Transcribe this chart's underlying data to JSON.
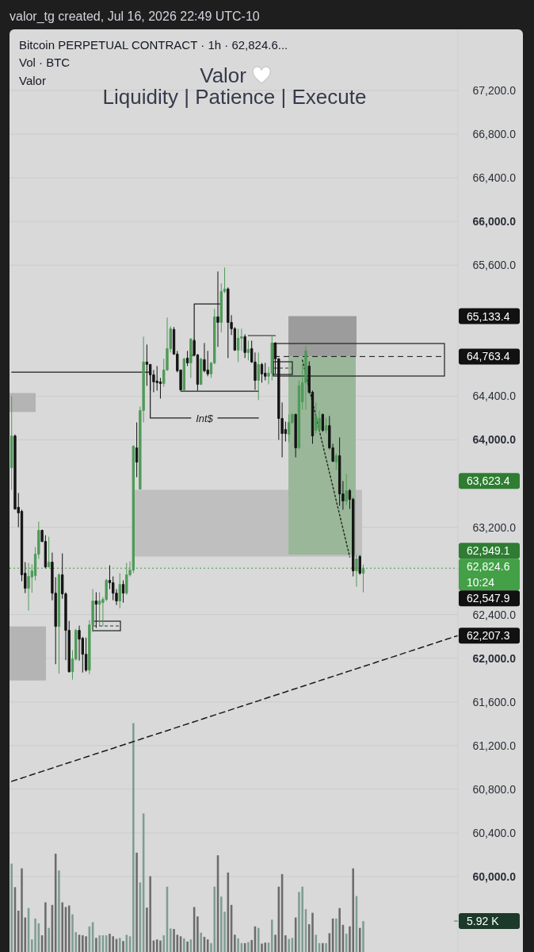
{
  "chart_data": {
    "type": "candlestick",
    "title": "Bitcoin PERPETUAL CONTRACT · 1h · 62,824.6...",
    "annotations": [
      "valor_tg created, Jul 16, 2026 22:49 UTC-10",
      "Vol · BTC",
      "Valor",
      "Valor",
      "Liquidity | Patience | Execute",
      "Int$",
      "10:24",
      "65,133.4",
      "62,949.1",
      "63,623.4",
      "62,547.9",
      "62,207.3"
    ],
    "categories": [
      null,
      null,
      null,
      null,
      null,
      null,
      null,
      null,
      null,
      null,
      null,
      null,
      null,
      null,
      null,
      null,
      null,
      null,
      null,
      null,
      null,
      null,
      null,
      null,
      null,
      null,
      null,
      null,
      null,
      null,
      null,
      null,
      null,
      null,
      null,
      null,
      null,
      null,
      null,
      null,
      null,
      null,
      null,
      null,
      null,
      null,
      null,
      null,
      null,
      null,
      null,
      null,
      null,
      null,
      null,
      null,
      null,
      null,
      null,
      null,
      null,
      null,
      null,
      null,
      null,
      null,
      null,
      null,
      null,
      null,
      null,
      null,
      null,
      null,
      null,
      null,
      null,
      null,
      null,
      null,
      null,
      null,
      null,
      null,
      null,
      null,
      null,
      null,
      null,
      null,
      null,
      null,
      null,
      null,
      null,
      null,
      null,
      null,
      null,
      null,
      null,
      null,
      null,
      null,
      null,
      null,
      null,
      null,
      null,
      null,
      null,
      null,
      null,
      null,
      null,
      null,
      null,
      null,
      null,
      null,
      null,
      null,
      null,
      null,
      null,
      null,
      null,
      null,
      null,
      null,
      null,
      null,
      null
    ],
    "ohlc": [
      [
        63745,
        64400,
        63542,
        64036
      ],
      [
        64036,
        64050,
        63360,
        63367
      ],
      [
        63382,
        63513,
        63200,
        63331
      ],
      [
        63345,
        63360,
        62705,
        62764
      ],
      [
        62778,
        62880,
        62596,
        62640
      ],
      [
        62640,
        62873,
        62436,
        62749
      ],
      [
        62745,
        62860,
        62600,
        62800
      ],
      [
        62756,
        63018,
        62713,
        62953
      ],
      [
        62953,
        63251,
        62909,
        63171
      ],
      [
        63171,
        63178,
        63062,
        63069
      ],
      [
        63069,
        63127,
        62822,
        62836
      ],
      [
        62836,
        63113,
        62836,
        62880
      ],
      [
        62880,
        62967,
        62531,
        62596
      ],
      [
        62596,
        62742,
        61945,
        62291
      ],
      [
        62291,
        62778,
        61858,
        62764
      ],
      [
        62764,
        62960,
        62545,
        62589
      ],
      [
        62589,
        62604,
        61982,
        62255
      ],
      [
        62255,
        62342,
        61869,
        61876
      ],
      [
        61876,
        62073,
        61804,
        61993
      ],
      [
        61993,
        62269,
        61978,
        62255
      ],
      [
        62255,
        62298,
        61978,
        62175
      ],
      [
        62182,
        62196,
        61869,
        62036
      ],
      [
        62036,
        62189,
        61876,
        61891
      ],
      [
        61891,
        62349,
        61855,
        62305
      ],
      [
        62305,
        62633,
        62240,
        62524
      ],
      [
        62524,
        62604,
        62276,
        62495
      ],
      [
        62495,
        62604,
        62291,
        62524
      ],
      [
        62510,
        62560,
        62291,
        62538
      ],
      [
        62538,
        62727,
        62524,
        62713
      ],
      [
        62713,
        62851,
        62633,
        62691
      ],
      [
        62691,
        62749,
        62531,
        62596
      ],
      [
        62596,
        62633,
        62487,
        62524
      ],
      [
        62524,
        62778,
        62458,
        62676
      ],
      [
        62676,
        62713,
        62509,
        62596
      ],
      [
        62596,
        62873,
        62582,
        62764
      ],
      [
        62764,
        62887,
        62749,
        62807
      ],
      [
        62807,
        63950,
        62780,
        63942
      ],
      [
        63927,
        64160,
        63658,
        63796
      ],
      [
        63549,
        64305,
        63549,
        64269
      ],
      [
        64269,
        64945,
        64160,
        64713
      ],
      [
        64713,
        64873,
        64495,
        64691
      ],
      [
        64691,
        64691,
        64451,
        64596
      ],
      [
        64596,
        64640,
        64436,
        64531
      ],
      [
        64538,
        64676,
        64451,
        64524
      ],
      [
        64531,
        64567,
        64378,
        64516
      ],
      [
        64516,
        64742,
        64487,
        64640
      ],
      [
        64640,
        65120,
        64633,
        64836
      ],
      [
        64836,
        65040,
        64800,
        65018
      ],
      [
        65011,
        65033,
        64778,
        64786
      ],
      [
        64786,
        64815,
        64618,
        64633
      ],
      [
        64640,
        64640,
        64451,
        64458
      ],
      [
        64458,
        64749,
        64451,
        64742
      ],
      [
        64749,
        64815,
        64676,
        64705
      ],
      [
        64705,
        64931,
        64567,
        64924
      ],
      [
        64909,
        64924,
        64764,
        64778
      ],
      [
        64778,
        64786,
        64451,
        64509
      ],
      [
        64509,
        64749,
        64502,
        64742
      ],
      [
        64735,
        64887,
        64618,
        64633
      ],
      [
        64640,
        64815,
        64582,
        64604
      ],
      [
        64604,
        64713,
        64567,
        64705
      ],
      [
        64705,
        65200,
        64691,
        65127
      ],
      [
        65127,
        65542,
        64851,
        65076
      ],
      [
        65076,
        65433,
        64985,
        65360
      ],
      [
        65360,
        65578,
        65345,
        65382
      ],
      [
        65382,
        65396,
        64749,
        65076
      ],
      [
        65076,
        65142,
        64960,
        65018
      ],
      [
        65018,
        65033,
        64815,
        64822
      ],
      [
        64822,
        65018,
        64713,
        64931
      ],
      [
        64931,
        65018,
        64815,
        64945
      ],
      [
        64945,
        64967,
        64749,
        64800
      ],
      [
        64800,
        64909,
        64727,
        64829
      ],
      [
        64836,
        64909,
        64705,
        64713
      ],
      [
        64713,
        64800,
        64458,
        64545
      ],
      [
        64545,
        64800,
        64364,
        64691
      ],
      [
        64691,
        64705,
        64524,
        64604
      ],
      [
        64611,
        64705,
        64545,
        64582
      ],
      [
        64582,
        64669,
        64509,
        64611
      ],
      [
        64611,
        64960,
        64545,
        64887
      ],
      [
        64887,
        64895,
        64604,
        64742
      ],
      [
        64742,
        64749,
        64000,
        64196
      ],
      [
        64196,
        64342,
        63840,
        64058
      ],
      [
        64095,
        64167,
        63985,
        64058
      ],
      [
        64051,
        64233,
        63978,
        64160
      ],
      [
        64160,
        64240,
        64145,
        64233
      ],
      [
        64233,
        64240,
        63840,
        63927
      ],
      [
        63927,
        64545,
        63913,
        64495
      ],
      [
        64349,
        64691,
        64276,
        64524
      ],
      [
        64524,
        64858,
        64276,
        64815
      ],
      [
        64676,
        64720,
        64422,
        64436
      ],
      [
        64436,
        64451,
        63964,
        64036
      ],
      [
        64087,
        64342,
        64058,
        64218
      ],
      [
        64095,
        64269,
        64073,
        64196
      ],
      [
        64233,
        64240,
        64073,
        64087
      ],
      [
        64087,
        64204,
        64058,
        64131
      ],
      [
        64131,
        64218,
        63913,
        63927
      ],
      [
        63927,
        63964,
        63796,
        63804
      ],
      [
        63796,
        63876,
        63724,
        63855
      ],
      [
        63855,
        64022,
        63396,
        63505
      ],
      [
        63505,
        63622,
        63360,
        63440
      ],
      [
        63440,
        63687,
        63404,
        63535
      ],
      [
        63535,
        63549,
        63367,
        63455
      ],
      [
        63455,
        63469,
        62749,
        62800
      ],
      [
        62800,
        62945,
        62655,
        62909
      ],
      [
        62931,
        62945,
        62764,
        62778
      ],
      [
        62778,
        62858,
        62604,
        62824.6
      ],
      null,
      null,
      null,
      null,
      null,
      null,
      null,
      null,
      null,
      null,
      null,
      null,
      null,
      null,
      null,
      null,
      null,
      null,
      null,
      null,
      null,
      null,
      null,
      null,
      null,
      null,
      null,
      null
    ],
    "colors": [
      "#4f9a58",
      "#141414",
      "#141414",
      "#141414",
      "#141414",
      "#4f9a58",
      "#4f9a58",
      "#4f9a58",
      "#4f9a58",
      "#141414",
      "#141414",
      "#4f9a58",
      "#141414",
      "#141414",
      "#4f9a58",
      "#141414",
      "#141414",
      "#141414",
      "#4f9a58",
      "#4f9a58",
      "#141414",
      "#141414",
      "#141414",
      "#4f9a58",
      "#4f9a58",
      "#141414",
      "#4f9a58",
      "#4f9a58",
      "#4f9a58",
      "#141414",
      "#141414",
      "#141414",
      "#4f9a58",
      "#141414",
      "#4f9a58",
      "#4f9a58",
      "#4f9a58",
      "#141414",
      "#4f9a58",
      "#4f9a58",
      "#141414",
      "#141414",
      "#141414",
      "#141414",
      "#141414",
      "#4f9a58",
      "#4f9a58",
      "#4f9a58",
      "#141414",
      "#141414",
      "#141414",
      "#4f9a58",
      "#141414",
      "#4f9a58",
      "#141414",
      "#141414",
      "#4f9a58",
      "#141414",
      "#141414",
      "#4f9a58",
      "#4f9a58",
      "#141414",
      "#4f9a58",
      "#4f9a58",
      "#141414",
      "#141414",
      "#141414",
      "#4f9a58",
      "#4f9a58",
      "#141414",
      "#4f9a58",
      "#141414",
      "#141414",
      "#4f9a58",
      "#141414",
      "#141414",
      "#4f9a58",
      "#4f9a58",
      "#141414",
      "#141414",
      "#141414",
      "#141414",
      "#4f9a58",
      "#4f9a58",
      "#141414",
      "#4f9a58",
      "#4f9a58",
      "#4f9a58",
      "#141414",
      "#141414",
      "#4f9a58",
      "#4f9a58",
      "#141414",
      "#4f9a58",
      "#141414",
      "#141414",
      "#4f9a58",
      "#141414",
      "#141414",
      "#4f9a58",
      "#141414",
      "#141414",
      "#4f9a58",
      "#141414",
      "#4f9a58",
      null,
      null,
      null,
      null,
      null,
      null,
      null,
      null,
      null,
      null,
      null,
      null,
      null,
      null,
      null,
      null,
      null,
      null,
      null,
      null,
      null,
      null,
      null,
      null,
      null,
      null,
      null,
      null
    ],
    "series": [
      {
        "type": "bar",
        "axis": "y2",
        "values": [
          16.9,
          12.4,
          7.9,
          16.0,
          6.6,
          8.4,
          2.4,
          6.4,
          5.5,
          3.2,
          9.5,
          4.6,
          9.0,
          18.8,
          15.6,
          9.5,
          8.6,
          8.9,
          7.2,
          3.8,
          3.3,
          3.2,
          3.0,
          4.9,
          5.7,
          2.7,
          3.2,
          3.2,
          3.2,
          3.5,
          3.0,
          2.5,
          2.7,
          2.1,
          3.3,
          3.0,
          43.8,
          19.0,
          13.3,
          26.5,
          8.5,
          14.5,
          2.2,
          2.4,
          2.2,
          3.2,
          12.5,
          4.5,
          4.4,
          3.3,
          3.0,
          2.6,
          2.0,
          2.4,
          8.6,
          6.8,
          3.7,
          2.9,
          2.4,
          1.7,
          12.5,
          18.5,
          10.6,
          7.7,
          15.2,
          9.0,
          3.3,
          2.6,
          1.7,
          1.7,
          1.9,
          2.3,
          4.9,
          4.6,
          1.6,
          1.8,
          1.8,
          6.2,
          3.3,
          12.5,
          14.9,
          3.2,
          2.5,
          2.7,
          6.6,
          11.5,
          12.5,
          8.2,
          5.3,
          7.5,
          3.3,
          1.7,
          1.7,
          1.7,
          3.6,
          6.4,
          6.4,
          8.4,
          5.2,
          3.5,
          4.9,
          16.0,
          10.7,
          4.6,
          5.9,
          null,
          null,
          null,
          null,
          null,
          null,
          null,
          null,
          null,
          null,
          null,
          null,
          null,
          null,
          null,
          null,
          null,
          null,
          null,
          null,
          null,
          null,
          null,
          null,
          null,
          null,
          null,
          null
        ],
        "colors": [
          "#7f9d92",
          "#6c6c6c",
          "#6c6c6c",
          "#6c6c6c",
          "#6c6c6c",
          "#7f9d92",
          "#7f9d92",
          "#7f9d92",
          "#7f9d92",
          "#6c6c6c",
          "#6c6c6c",
          "#7f9d92",
          "#6c6c6c",
          "#6c6c6c",
          "#7f9d92",
          "#6c6c6c",
          "#6c6c6c",
          "#6c6c6c",
          "#7f9d92",
          "#7f9d92",
          "#6c6c6c",
          "#6c6c6c",
          "#6c6c6c",
          "#7f9d92",
          "#7f9d92",
          "#6c6c6c",
          "#7f9d92",
          "#7f9d92",
          "#7f9d92",
          "#6c6c6c",
          "#6c6c6c",
          "#6c6c6c",
          "#7f9d92",
          "#6c6c6c",
          "#7f9d92",
          "#7f9d92",
          "#7f9d92",
          "#6c6c6c",
          "#7f9d92",
          "#7f9d92",
          "#6c6c6c",
          "#6c6c6c",
          "#6c6c6c",
          "#6c6c6c",
          "#6c6c6c",
          "#7f9d92",
          "#7f9d92",
          "#7f9d92",
          "#6c6c6c",
          "#6c6c6c",
          "#6c6c6c",
          "#7f9d92",
          "#6c6c6c",
          "#7f9d92",
          "#6c6c6c",
          "#6c6c6c",
          "#7f9d92",
          "#6c6c6c",
          "#6c6c6c",
          "#7f9d92",
          "#7f9d92",
          "#6c6c6c",
          "#7f9d92",
          "#7f9d92",
          "#6c6c6c",
          "#6c6c6c",
          "#6c6c6c",
          "#7f9d92",
          "#7f9d92",
          "#6c6c6c",
          "#7f9d92",
          "#6c6c6c",
          "#6c6c6c",
          "#7f9d92",
          "#6c6c6c",
          "#6c6c6c",
          "#7f9d92",
          "#7f9d92",
          "#6c6c6c",
          "#6c6c6c",
          "#6c6c6c",
          "#6c6c6c",
          "#7f9d92",
          "#7f9d92",
          "#6c6c6c",
          "#7f9d92",
          "#7f9d92",
          "#7f9d92",
          "#6c6c6c",
          "#6c6c6c",
          "#7f9d92",
          "#7f9d92",
          "#6c6c6c",
          "#7f9d92",
          "#6c6c6c",
          "#6c6c6c",
          "#7f9d92",
          "#6c6c6c",
          "#6c6c6c",
          "#7f9d92",
          "#6c6c6c",
          "#6c6c6c",
          "#7f9d92",
          "#6c6c6c",
          "#7f9d92",
          null,
          null,
          null,
          null,
          null,
          null,
          null,
          null,
          null,
          null,
          null,
          null,
          null,
          null,
          null,
          null,
          null,
          null,
          null,
          null,
          null,
          null,
          null,
          null,
          null,
          null,
          null,
          null
        ]
      },
      {
        "type": "line",
        "color": "#1a1a1a",
        "line_style": "dashed",
        "values": [
          60872,
          60882,
          60892,
          60902,
          60912,
          60923,
          60933,
          60943,
          60953,
          60963,
          60973,
          60983,
          60993,
          61004,
          61014,
          61024,
          61034,
          61044,
          61054,
          61064,
          61074,
          61084,
          61095,
          61105,
          61115,
          61125,
          61135,
          61145,
          61155,
          61165,
          61175,
          61186,
          61196,
          61206,
          61216,
          61226,
          61236,
          61246,
          61256,
          61267,
          61277,
          61287,
          61297,
          61307,
          61317,
          61327,
          61337,
          61347,
          61358,
          61368,
          61378,
          61388,
          61398,
          61408,
          61418,
          61428,
          61438,
          61449,
          61459,
          61469,
          61479,
          61489,
          61499,
          61509,
          61519,
          61530,
          61540,
          61550,
          61560,
          61570,
          61580,
          61590,
          61600,
          61610,
          61621,
          61631,
          61641,
          61651,
          61661,
          61671,
          61681,
          61691,
          61702,
          61712,
          61722,
          61732,
          61742,
          61752,
          61762,
          61772,
          61782,
          61793,
          61803,
          61813,
          61823,
          61833,
          61843,
          61853,
          61863,
          61874,
          61884,
          61894,
          61904,
          61914,
          61924,
          61934,
          61944,
          61954,
          61965,
          61975,
          61985,
          61995,
          62005,
          62015,
          62025,
          62035,
          62046,
          62056,
          62066,
          62076,
          62086,
          62096,
          62106,
          62116,
          62126,
          62137,
          62147,
          62157,
          62167,
          62177,
          62187,
          62197,
          62207
        ]
      },
      {
        "type": "line",
        "color": "#2b2b2b",
        "line_style": "dotted",
        "values": [
          null,
          null,
          null,
          null,
          null,
          null,
          null,
          null,
          null,
          null,
          null,
          null,
          null,
          null,
          null,
          null,
          null,
          null,
          null,
          null,
          null,
          null,
          null,
          null,
          null,
          null,
          null,
          null,
          null,
          null,
          null,
          null,
          null,
          null,
          null,
          null,
          null,
          null,
          null,
          null,
          null,
          null,
          null,
          null,
          null,
          null,
          null,
          null,
          null,
          null,
          null,
          null,
          null,
          null,
          null,
          null,
          null,
          null,
          null,
          null,
          null,
          null,
          null,
          null,
          null,
          null,
          null,
          null,
          null,
          null,
          null,
          null,
          null,
          null,
          null,
          null,
          null,
          null,
          null,
          null,
          null,
          null,
          null,
          null,
          null,
          null,
          64730,
          64601,
          64472,
          64344,
          64215,
          64087,
          63958,
          63829,
          63700,
          63572,
          63443,
          63314,
          63185,
          63057,
          62928,
          null,
          null,
          null,
          null,
          null,
          null,
          null,
          null,
          null,
          null,
          null,
          null,
          null,
          null,
          null,
          null,
          null,
          null,
          null,
          null,
          null,
          null,
          null,
          null,
          null,
          null,
          null,
          null,
          null,
          null,
          null,
          null
        ]
      },
      {
        "type": "step",
        "color": "#1e1e1e",
        "line_style": "solid",
        "values": [
          64620,
          64620,
          64620,
          64620,
          64620,
          64620,
          64620,
          64620,
          64620,
          64620,
          64620,
          64620,
          64620,
          64620,
          64620,
          64620,
          64620,
          64620,
          64620,
          64620,
          64620,
          64620,
          64620,
          64620,
          64620,
          64620,
          64620,
          64620,
          64620,
          64620,
          64620,
          64620,
          64620,
          64620,
          64620,
          64620,
          64620,
          64620,
          64620,
          64620,
          64620,
          64200,
          64200,
          64200,
          64200,
          64200,
          64200,
          64200,
          64200,
          64200,
          64200,
          64200,
          64200,
          64200,
          null,
          null,
          null,
          null,
          null,
          null,
          null,
          64200,
          64200,
          64200,
          64200,
          64200,
          64200,
          64200,
          64200,
          64200,
          64200,
          64200,
          64200,
          64200,
          null,
          null,
          null,
          null,
          null,
          null,
          null,
          null,
          null,
          null,
          null,
          null,
          null,
          null,
          null,
          null,
          null,
          null,
          null,
          null,
          null,
          null,
          null,
          null,
          null,
          null,
          null,
          null,
          null,
          null,
          null,
          null,
          null,
          null,
          null,
          null,
          null,
          null,
          null,
          null,
          null,
          null,
          null,
          null,
          null,
          null,
          null,
          null,
          null,
          null,
          null,
          null,
          null,
          null,
          null,
          null,
          null,
          null,
          null
        ]
      },
      {
        "type": "line",
        "color": "#1e1e1e",
        "line_style": "solid",
        "values": [
          null,
          null,
          null,
          null,
          null,
          null,
          null,
          null,
          null,
          null,
          null,
          null,
          null,
          null,
          null,
          null,
          null,
          null,
          null,
          null,
          null,
          null,
          null,
          null,
          null,
          null,
          null,
          null,
          null,
          null,
          null,
          null,
          null,
          null,
          null,
          null,
          null,
          null,
          null,
          null,
          null,
          null,
          null,
          null,
          null,
          null,
          null,
          null,
          null,
          null,
          64445,
          64445,
          64445,
          64445,
          64445,
          64445,
          64445,
          64445,
          64445,
          64445,
          64445,
          64445,
          64445,
          64445,
          64445,
          64445,
          64445,
          64445,
          64445,
          64445,
          64445,
          64445,
          64445,
          64445,
          null,
          null,
          null,
          null,
          null,
          null,
          null,
          null,
          null,
          null,
          null,
          null,
          null,
          null,
          null,
          null,
          null,
          null,
          null,
          null,
          null,
          null,
          null,
          null,
          null,
          null,
          null,
          null,
          null,
          null,
          null,
          null,
          null,
          null,
          null,
          null,
          null,
          null,
          null,
          null,
          null,
          null,
          null,
          null,
          null,
          null,
          null,
          null,
          null,
          null,
          null,
          null,
          null,
          null,
          null,
          null,
          null,
          null,
          null
        ]
      },
      {
        "type": "step",
        "color": "#1e1e1e",
        "line_style": "solid",
        "values": [
          null,
          null,
          null,
          null,
          null,
          null,
          null,
          null,
          null,
          null,
          null,
          null,
          null,
          null,
          null,
          null,
          null,
          null,
          null,
          null,
          null,
          null,
          null,
          null,
          null,
          null,
          null,
          null,
          null,
          null,
          null,
          null,
          null,
          null,
          null,
          null,
          null,
          null,
          null,
          null,
          null,
          null,
          null,
          null,
          null,
          null,
          null,
          null,
          null,
          null,
          null,
          null,
          null,
          64775,
          65245,
          65245,
          65245,
          65245,
          65245,
          65245,
          65245,
          65245,
          65245,
          null,
          null,
          null,
          null,
          null,
          null,
          null,
          null,
          null,
          null,
          null,
          null,
          null,
          null,
          null,
          null,
          null,
          null,
          null,
          null,
          null,
          null,
          null,
          null,
          null,
          null,
          null,
          null,
          null,
          null,
          null,
          null,
          null,
          null,
          null,
          null,
          null,
          null,
          null,
          null,
          null,
          null,
          null,
          null,
          null,
          null,
          null,
          null,
          null,
          null,
          null,
          null,
          null,
          null,
          null,
          null,
          null,
          null,
          null,
          null,
          null,
          null,
          null,
          null,
          null,
          null,
          null,
          null,
          null,
          null
        ]
      },
      {
        "type": "line",
        "color": "#1e1e1e",
        "line_style": "solid",
        "values": [
          null,
          null,
          null,
          null,
          null,
          null,
          null,
          null,
          null,
          null,
          null,
          null,
          null,
          null,
          null,
          null,
          null,
          null,
          null,
          null,
          null,
          null,
          null,
          null,
          null,
          null,
          null,
          null,
          null,
          null,
          null,
          null,
          null,
          null,
          null,
          null,
          null,
          null,
          null,
          null,
          null,
          null,
          null,
          null,
          null,
          null,
          null,
          null,
          null,
          null,
          null,
          null,
          null,
          null,
          null,
          null,
          null,
          null,
          null,
          null,
          null,
          null,
          null,
          null,
          null,
          null,
          null,
          null,
          null,
          null,
          64955,
          64955,
          64955,
          64955,
          64955,
          64955,
          64955,
          64955,
          64955,
          null,
          null,
          null,
          null,
          null,
          null,
          null,
          null,
          null,
          null,
          null,
          null,
          null,
          null,
          null,
          null,
          null,
          null,
          null,
          null,
          null,
          null,
          null,
          null,
          null,
          null,
          null,
          null,
          null,
          null,
          null,
          null,
          null,
          null,
          null,
          null,
          null,
          null,
          null,
          null,
          null,
          null,
          null,
          null,
          null,
          null,
          null,
          null,
          null,
          null,
          null,
          null,
          null,
          null
        ]
      }
    ],
    "ylim": [
      59309,
      67760
    ],
    "yticks": [
      {
        "value": 67200,
        "label": "67,200.0"
      },
      {
        "value": 66800,
        "label": "66,800.0"
      },
      {
        "value": 66400,
        "label": "66,400.0"
      },
      {
        "value": 66000,
        "label": "66,000.0"
      },
      {
        "value": 65600,
        "label": "65,600.0"
      },
      {
        "value": 64400,
        "label": "64,400.0"
      },
      {
        "value": 64000,
        "label": "64,000.0"
      },
      {
        "value": 63200,
        "label": "63,200.0"
      },
      {
        "value": 62400,
        "label": "62,400.0"
      },
      {
        "value": 62000,
        "label": "62,000.0"
      },
      {
        "value": 61600,
        "label": "61,600.0"
      },
      {
        "value": 61200,
        "label": "61,200.0"
      },
      {
        "value": 60800,
        "label": "60,800.0"
      },
      {
        "value": 60400,
        "label": "60,400.0"
      },
      {
        "value": 60000,
        "label": "60,000.0"
      }
    ],
    "y2lim": [
      0,
      176.5
    ],
    "y2ticks": [
      {
        "value": 5.92,
        "label": "5.92 K"
      }
    ],
    "grid": "y",
    "ref_lines": [
      {
        "axis": "y",
        "value": 64763.4,
        "label": "64,763.4",
        "color": "#111111",
        "line_style": "dashed"
      },
      {
        "axis": "y",
        "value": 62824.6,
        "label": "62,824.6",
        "color": "#43a047",
        "line_style": "dotted"
      }
    ],
    "bands": [
      {
        "axis": "y",
        "from": 64255,
        "to": 64429,
        "color": "#b4b4b4"
      },
      {
        "axis": "y",
        "from": 61796,
        "to": 62291,
        "color": "#b4b4b4"
      },
      {
        "axis": "y",
        "from": 62931,
        "to": 63542,
        "color": "#bfbfbf"
      },
      {
        "axis": "y",
        "from": 64763.4,
        "to": 65133.4,
        "color": "#9c9c9c"
      },
      {
        "axis": "y",
        "from": 62949.1,
        "to": 64763.4,
        "color": "#9ab79a"
      }
    ]
  }
}
